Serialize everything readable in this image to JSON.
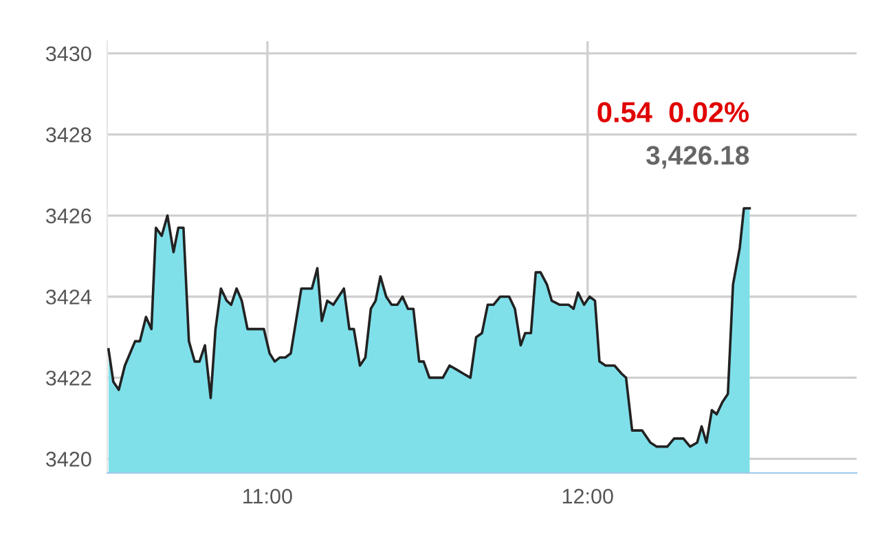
{
  "chart_data": {
    "type": "area",
    "color": "#7fe0ea",
    "x": [
      10.504,
      10.519,
      10.536,
      10.555,
      10.587,
      10.602,
      10.621,
      10.638,
      10.652,
      10.67,
      10.688,
      10.707,
      10.722,
      10.738,
      10.755,
      10.773,
      10.788,
      10.805,
      10.823,
      10.838,
      10.855,
      10.873,
      10.887,
      10.904,
      10.92,
      10.938,
      10.956,
      10.989,
      11.007,
      11.023,
      11.039,
      11.056,
      11.073,
      11.106,
      11.139,
      11.156,
      11.17,
      11.187,
      11.206,
      11.239,
      11.256,
      11.27,
      11.289,
      11.306,
      11.323,
      11.338,
      11.353,
      11.371,
      11.388,
      11.406,
      11.422,
      11.439,
      11.456,
      11.474,
      11.488,
      11.506,
      11.548,
      11.569,
      11.591,
      11.612,
      11.634,
      11.652,
      11.67,
      11.688,
      11.706,
      11.727,
      11.755,
      11.773,
      11.791,
      11.805,
      11.823,
      11.838,
      11.853,
      11.873,
      11.888,
      11.913,
      11.941,
      11.956,
      11.97,
      11.989,
      12.006,
      12.023,
      12.037,
      12.056,
      12.084,
      12.106,
      12.12,
      12.139,
      12.17,
      12.196,
      12.216,
      12.249,
      12.27,
      12.299,
      12.32,
      12.342,
      12.356,
      12.371,
      12.388,
      12.403,
      12.421,
      12.438,
      12.454,
      12.475,
      12.488,
      12.506
    ],
    "values": [
      3422.7,
      3421.9,
      3421.7,
      3422.3,
      3422.9,
      3422.9,
      3423.5,
      3423.2,
      3425.7,
      3425.5,
      3426.0,
      3425.1,
      3425.7,
      3425.7,
      3422.9,
      3422.4,
      3422.4,
      3422.8,
      3421.5,
      3423.2,
      3424.2,
      3423.9,
      3423.8,
      3424.2,
      3423.9,
      3423.2,
      3423.2,
      3423.2,
      3422.6,
      3422.4,
      3422.5,
      3422.5,
      3422.6,
      3424.2,
      3424.2,
      3424.7,
      3423.4,
      3423.9,
      3423.8,
      3424.2,
      3423.2,
      3423.2,
      3422.3,
      3422.5,
      3423.7,
      3423.9,
      3424.5,
      3424.0,
      3423.8,
      3423.8,
      3424.0,
      3423.7,
      3423.7,
      3422.4,
      3422.4,
      3422.0,
      3422.0,
      3422.3,
      3422.2,
      3422.1,
      3422.0,
      3423.0,
      3423.1,
      3423.8,
      3423.8,
      3424.0,
      3424.0,
      3423.7,
      3422.8,
      3423.1,
      3423.1,
      3424.6,
      3424.6,
      3424.3,
      3423.9,
      3423.8,
      3423.8,
      3423.7,
      3424.1,
      3423.8,
      3424.0,
      3423.9,
      3422.4,
      3422.3,
      3422.3,
      3422.1,
      3422.0,
      3420.7,
      3420.7,
      3420.4,
      3420.3,
      3420.3,
      3420.5,
      3420.5,
      3420.3,
      3420.4,
      3420.8,
      3420.4,
      3421.2,
      3421.1,
      3421.4,
      3421.6,
      3424.3,
      3425.2,
      3426.18,
      3426.18
    ],
    "xlim": [
      10.5,
      12.84
    ],
    "xticks": [
      {
        "value": 11,
        "label": "11:00"
      },
      {
        "value": 12,
        "label": "12:00"
      }
    ],
    "ylim": [
      3419.65,
      3430.3
    ],
    "yticks": [
      3420,
      3422,
      3424,
      3426,
      3428,
      3430
    ],
    "grid": true,
    "annotations": [
      "0.54  0.02%",
      {
        "text": "3,426.18",
        "x": 12.506,
        "y": 3426.18
      }
    ]
  }
}
